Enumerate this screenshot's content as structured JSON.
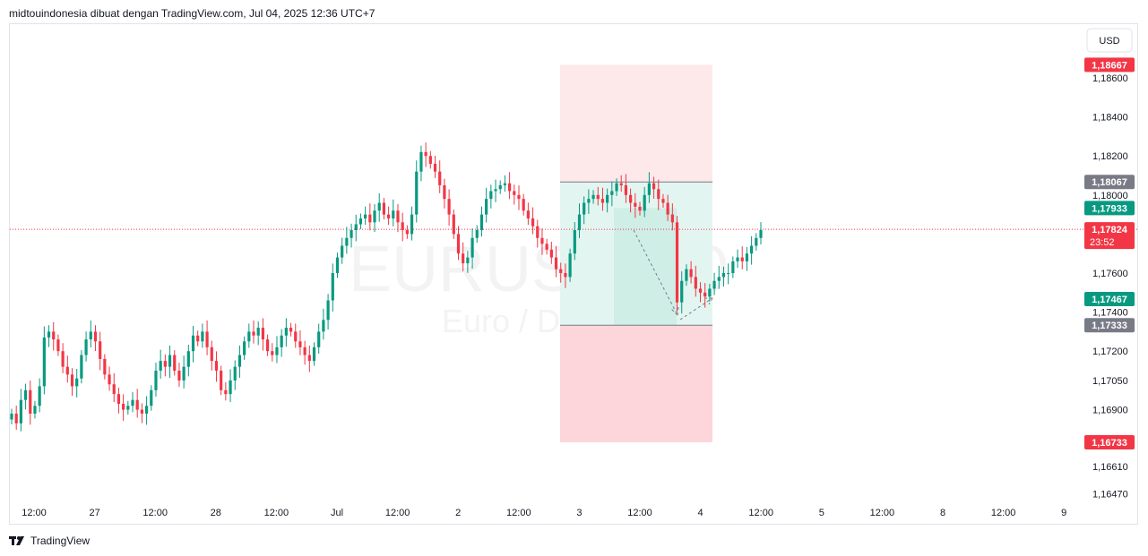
{
  "header": {
    "text": "midtouindonesia dibuat dengan TradingView.com, Jul 04, 2025 12:36 UTC+7"
  },
  "footer": {
    "brand": "TradingView",
    "logo_icon": "tradingview-logo-icon"
  },
  "currency_button": {
    "label": "USD"
  },
  "watermark": {
    "symbol": "EURUSD, 30",
    "description": "Euro / Dollar AS"
  },
  "colors": {
    "up": "#089981",
    "down": "#f23645",
    "profit_zone": "#cfeee6",
    "loss_zone": "#fcd6da",
    "grid": "#e0e3eb"
  },
  "chart_data": {
    "type": "candlestick",
    "symbol": "EURUSD",
    "timeframe": "30",
    "y_axis": {
      "ticks": [
        "1,18600",
        "1,18400",
        "1,18200",
        "1,18000",
        "1,17600",
        "1,17400",
        "1,17200",
        "1,17050",
        "1,16900",
        "1,16610",
        "1,16470"
      ],
      "tick_values": [
        1.186,
        1.184,
        1.182,
        1.18,
        1.176,
        1.174,
        1.172,
        1.1705,
        1.169,
        1.1661,
        1.1647
      ]
    },
    "x_axis": {
      "ticks": [
        "12:00",
        "27",
        "12:00",
        "28",
        "12:00",
        "Jul",
        "12:00",
        "2",
        "12:00",
        "3",
        "12:00",
        "4",
        "12:00",
        "5",
        "12:00",
        "8",
        "12:00",
        "9"
      ]
    },
    "price_tags": [
      {
        "label": "1,18667",
        "value": 1.18667,
        "color": "#f23645"
      },
      {
        "label": "1,18067",
        "value": 1.18067,
        "color": "#787b86"
      },
      {
        "label": "1,17933",
        "value": 1.17933,
        "color": "#089981"
      },
      {
        "label": "1,17824",
        "sublabel": "23:52",
        "value": 1.17824,
        "color": "#f23645"
      },
      {
        "label": "1,17467",
        "value": 1.17467,
        "color": "#089981"
      },
      {
        "label": "1,17333",
        "value": 1.17333,
        "color": "#787b86"
      },
      {
        "label": "1,16733",
        "value": 1.16733,
        "color": "#f23645"
      }
    ],
    "last_price": 1.17824,
    "position_tool": {
      "entry": 1.17333,
      "stop_top": 1.18667,
      "profit_top": 1.18067,
      "stop_bottom": 1.16733
    },
    "series": [
      {
        "name": "",
        "points": [
          1.1688,
          1.1683,
          1.1695,
          1.17,
          1.1688,
          1.1692,
          1.1702,
          1.1727,
          1.173,
          1.1726,
          1.172,
          1.1712,
          1.1708,
          1.1702,
          1.1706,
          1.1718,
          1.1726,
          1.173,
          1.1725,
          1.1716,
          1.1708,
          1.1703,
          1.1698,
          1.1693,
          1.169,
          1.1692,
          1.1695,
          1.169,
          1.1688,
          1.1692,
          1.17,
          1.171,
          1.1715,
          1.1712,
          1.1718,
          1.171,
          1.1705,
          1.1712,
          1.172,
          1.1728,
          1.1725,
          1.173,
          1.1722,
          1.1715,
          1.171,
          1.17,
          1.1698,
          1.1705,
          1.1712,
          1.1718,
          1.1725,
          1.173,
          1.1728,
          1.1732,
          1.1726,
          1.172,
          1.1718,
          1.1722,
          1.1728,
          1.1732,
          1.173,
          1.1725,
          1.1722,
          1.1718,
          1.1715,
          1.1722,
          1.173,
          1.1736,
          1.1746,
          1.176,
          1.1768,
          1.1774,
          1.1778,
          1.1782,
          1.1785,
          1.1788,
          1.179,
          1.1786,
          1.1792,
          1.1796,
          1.179,
          1.1788,
          1.1792,
          1.1786,
          1.1782,
          1.178,
          1.179,
          1.1812,
          1.1822,
          1.182,
          1.1816,
          1.1812,
          1.1805,
          1.1798,
          1.179,
          1.178,
          1.177,
          1.1765,
          1.1768,
          1.1778,
          1.1782,
          1.179,
          1.1798,
          1.1802,
          1.1803,
          1.1805,
          1.1806,
          1.1802,
          1.18,
          1.1798,
          1.1792,
          1.1788,
          1.1784,
          1.1778,
          1.1775,
          1.1772,
          1.1768,
          1.1762,
          1.176,
          1.1758,
          1.177,
          1.1782,
          1.179,
          1.1796,
          1.1798,
          1.18,
          1.1798,
          1.1796,
          1.18,
          1.1802,
          1.1806,
          1.1805,
          1.18,
          1.1796,
          1.1794,
          1.1792,
          1.18,
          1.1806,
          1.1803,
          1.1798,
          1.1796,
          1.179,
          1.1786,
          1.1745,
          1.1756,
          1.1762,
          1.1758,
          1.1752,
          1.175,
          1.1748,
          1.1752,
          1.1756,
          1.1758,
          1.176,
          1.176,
          1.1766,
          1.1768,
          1.1766,
          1.177,
          1.1774,
          1.1778,
          1.1782
        ]
      }
    ]
  }
}
